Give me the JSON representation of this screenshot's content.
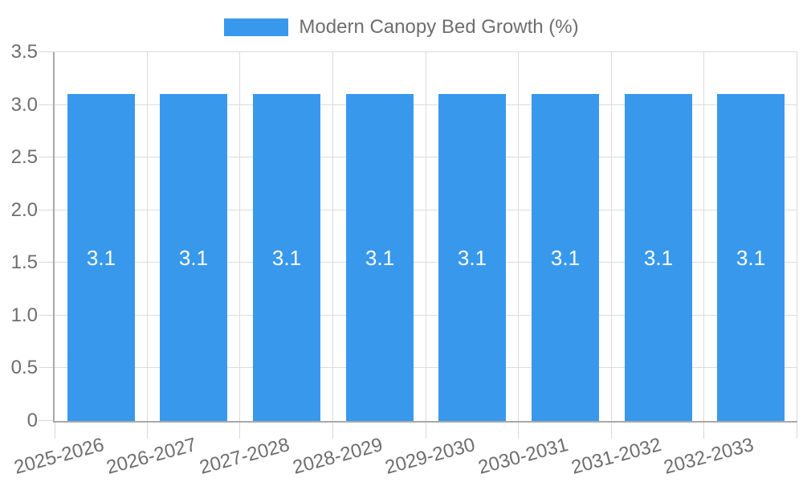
{
  "chart_data": {
    "type": "bar",
    "title": "Modern Canopy Bed Growth (%)",
    "categories": [
      "2025-2026",
      "2026-2027",
      "2027-2028",
      "2028-2029",
      "2029-2030",
      "2030-2031",
      "2031-2032",
      "2032-2033"
    ],
    "values": [
      3.1,
      3.1,
      3.1,
      3.1,
      3.1,
      3.1,
      3.1,
      3.1
    ],
    "value_labels": [
      "3.1",
      "3.1",
      "3.1",
      "3.1",
      "3.1",
      "3.1",
      "3.1",
      "3.1"
    ],
    "ylim": [
      0,
      3.5
    ],
    "yticks": [
      0,
      0.5,
      1,
      1.5,
      2,
      2.5,
      3,
      3.5
    ],
    "ytick_labels": [
      "0",
      "0.5",
      "1.0",
      "1.5",
      "2.0",
      "2.5",
      "3.0",
      "3.5"
    ],
    "grid": true,
    "legend": {
      "label": "Modern Canopy Bed Growth (%)",
      "position": "top-center"
    },
    "colors": {
      "bar": "#3899ec",
      "bar_value_text": "#ffffff",
      "grid": "#dcdcdc",
      "tick": "#d9d9d9",
      "axis": "#a8a8a8",
      "text": "#6e6e6e",
      "background": "#ffffff"
    }
  }
}
